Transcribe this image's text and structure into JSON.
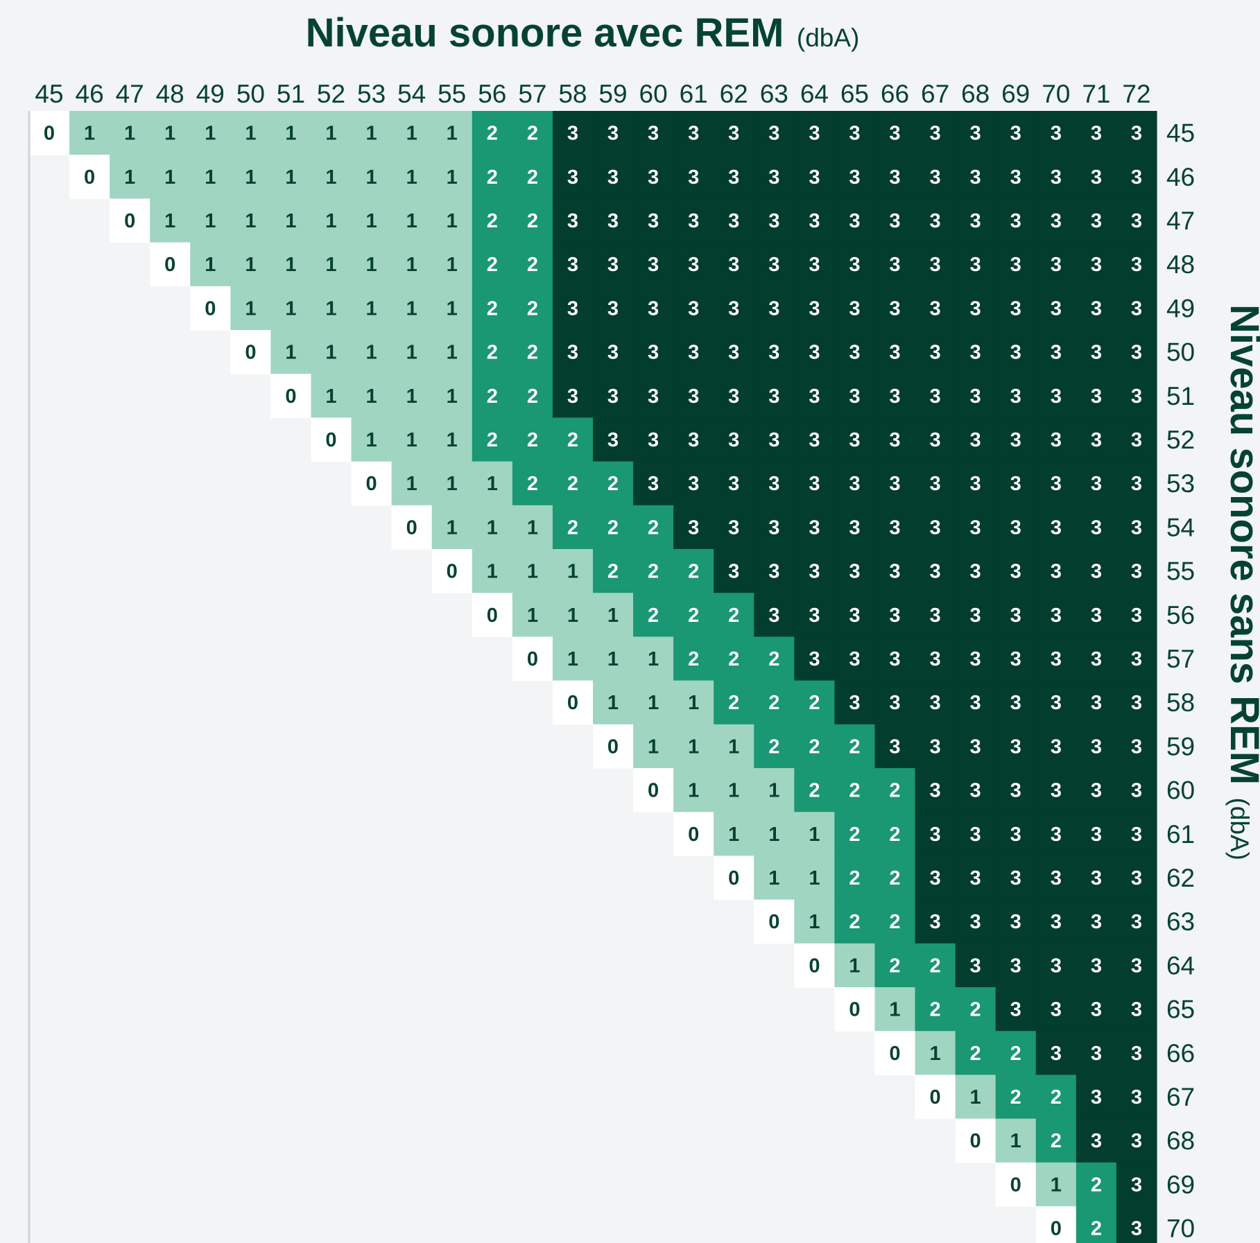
{
  "chart_data": {
    "type": "heatmap",
    "title": "Niveau sonore avec REM",
    "title_unit": "(dbA)",
    "ylabel": "Niveau sonore sans REM",
    "ylabel_unit": "(dbA)",
    "x_ticks": [
      45,
      46,
      47,
      48,
      49,
      50,
      51,
      52,
      53,
      54,
      55,
      56,
      57,
      58,
      59,
      60,
      61,
      62,
      63,
      64,
      65,
      66,
      67,
      68,
      69,
      70,
      71,
      72
    ],
    "y_ticks": [
      45,
      46,
      47,
      48,
      49,
      50,
      51,
      52,
      53,
      54,
      55,
      56,
      57,
      58,
      59,
      60,
      61,
      62,
      63,
      64,
      65,
      66,
      67,
      68,
      69,
      70
    ],
    "rows": [
      [
        0,
        1,
        1,
        1,
        1,
        1,
        1,
        1,
        1,
        1,
        1,
        2,
        2,
        3,
        3,
        3,
        3,
        3,
        3,
        3,
        3,
        3,
        3,
        3,
        3,
        3,
        3,
        3
      ],
      [
        null,
        0,
        1,
        1,
        1,
        1,
        1,
        1,
        1,
        1,
        1,
        2,
        2,
        3,
        3,
        3,
        3,
        3,
        3,
        3,
        3,
        3,
        3,
        3,
        3,
        3,
        3,
        3
      ],
      [
        null,
        null,
        0,
        1,
        1,
        1,
        1,
        1,
        1,
        1,
        1,
        2,
        2,
        3,
        3,
        3,
        3,
        3,
        3,
        3,
        3,
        3,
        3,
        3,
        3,
        3,
        3,
        3
      ],
      [
        null,
        null,
        null,
        0,
        1,
        1,
        1,
        1,
        1,
        1,
        1,
        2,
        2,
        3,
        3,
        3,
        3,
        3,
        3,
        3,
        3,
        3,
        3,
        3,
        3,
        3,
        3,
        3
      ],
      [
        null,
        null,
        null,
        null,
        0,
        1,
        1,
        1,
        1,
        1,
        1,
        2,
        2,
        3,
        3,
        3,
        3,
        3,
        3,
        3,
        3,
        3,
        3,
        3,
        3,
        3,
        3,
        3
      ],
      [
        null,
        null,
        null,
        null,
        null,
        0,
        1,
        1,
        1,
        1,
        1,
        2,
        2,
        3,
        3,
        3,
        3,
        3,
        3,
        3,
        3,
        3,
        3,
        3,
        3,
        3,
        3,
        3
      ],
      [
        null,
        null,
        null,
        null,
        null,
        null,
        0,
        1,
        1,
        1,
        1,
        2,
        2,
        3,
        3,
        3,
        3,
        3,
        3,
        3,
        3,
        3,
        3,
        3,
        3,
        3,
        3,
        3
      ],
      [
        null,
        null,
        null,
        null,
        null,
        null,
        null,
        0,
        1,
        1,
        1,
        2,
        2,
        2,
        3,
        3,
        3,
        3,
        3,
        3,
        3,
        3,
        3,
        3,
        3,
        3,
        3,
        3
      ],
      [
        null,
        null,
        null,
        null,
        null,
        null,
        null,
        null,
        0,
        1,
        1,
        1,
        2,
        2,
        2,
        3,
        3,
        3,
        3,
        3,
        3,
        3,
        3,
        3,
        3,
        3,
        3,
        3
      ],
      [
        null,
        null,
        null,
        null,
        null,
        null,
        null,
        null,
        null,
        0,
        1,
        1,
        1,
        2,
        2,
        2,
        3,
        3,
        3,
        3,
        3,
        3,
        3,
        3,
        3,
        3,
        3,
        3
      ],
      [
        null,
        null,
        null,
        null,
        null,
        null,
        null,
        null,
        null,
        null,
        0,
        1,
        1,
        1,
        2,
        2,
        2,
        3,
        3,
        3,
        3,
        3,
        3,
        3,
        3,
        3,
        3,
        3
      ],
      [
        null,
        null,
        null,
        null,
        null,
        null,
        null,
        null,
        null,
        null,
        null,
        0,
        1,
        1,
        1,
        2,
        2,
        2,
        3,
        3,
        3,
        3,
        3,
        3,
        3,
        3,
        3,
        3
      ],
      [
        null,
        null,
        null,
        null,
        null,
        null,
        null,
        null,
        null,
        null,
        null,
        null,
        0,
        1,
        1,
        1,
        2,
        2,
        2,
        3,
        3,
        3,
        3,
        3,
        3,
        3,
        3,
        3
      ],
      [
        null,
        null,
        null,
        null,
        null,
        null,
        null,
        null,
        null,
        null,
        null,
        null,
        null,
        0,
        1,
        1,
        1,
        2,
        2,
        2,
        3,
        3,
        3,
        3,
        3,
        3,
        3,
        3
      ],
      [
        null,
        null,
        null,
        null,
        null,
        null,
        null,
        null,
        null,
        null,
        null,
        null,
        null,
        null,
        0,
        1,
        1,
        1,
        2,
        2,
        2,
        3,
        3,
        3,
        3,
        3,
        3,
        3
      ],
      [
        null,
        null,
        null,
        null,
        null,
        null,
        null,
        null,
        null,
        null,
        null,
        null,
        null,
        null,
        null,
        0,
        1,
        1,
        1,
        2,
        2,
        2,
        3,
        3,
        3,
        3,
        3,
        3
      ],
      [
        null,
        null,
        null,
        null,
        null,
        null,
        null,
        null,
        null,
        null,
        null,
        null,
        null,
        null,
        null,
        null,
        0,
        1,
        1,
        1,
        2,
        2,
        3,
        3,
        3,
        3,
        3,
        3
      ],
      [
        null,
        null,
        null,
        null,
        null,
        null,
        null,
        null,
        null,
        null,
        null,
        null,
        null,
        null,
        null,
        null,
        null,
        0,
        1,
        1,
        2,
        2,
        3,
        3,
        3,
        3,
        3,
        3
      ],
      [
        null,
        null,
        null,
        null,
        null,
        null,
        null,
        null,
        null,
        null,
        null,
        null,
        null,
        null,
        null,
        null,
        null,
        null,
        0,
        1,
        2,
        2,
        3,
        3,
        3,
        3,
        3,
        3
      ],
      [
        null,
        null,
        null,
        null,
        null,
        null,
        null,
        null,
        null,
        null,
        null,
        null,
        null,
        null,
        null,
        null,
        null,
        null,
        null,
        0,
        1,
        2,
        2,
        3,
        3,
        3,
        3,
        3
      ],
      [
        null,
        null,
        null,
        null,
        null,
        null,
        null,
        null,
        null,
        null,
        null,
        null,
        null,
        null,
        null,
        null,
        null,
        null,
        null,
        null,
        0,
        1,
        2,
        2,
        3,
        3,
        3,
        3
      ],
      [
        null,
        null,
        null,
        null,
        null,
        null,
        null,
        null,
        null,
        null,
        null,
        null,
        null,
        null,
        null,
        null,
        null,
        null,
        null,
        null,
        null,
        0,
        1,
        2,
        2,
        3,
        3,
        3
      ],
      [
        null,
        null,
        null,
        null,
        null,
        null,
        null,
        null,
        null,
        null,
        null,
        null,
        null,
        null,
        null,
        null,
        null,
        null,
        null,
        null,
        null,
        null,
        0,
        1,
        2,
        2,
        3,
        3
      ],
      [
        null,
        null,
        null,
        null,
        null,
        null,
        null,
        null,
        null,
        null,
        null,
        null,
        null,
        null,
        null,
        null,
        null,
        null,
        null,
        null,
        null,
        null,
        null,
        0,
        1,
        2,
        3,
        3
      ],
      [
        null,
        null,
        null,
        null,
        null,
        null,
        null,
        null,
        null,
        null,
        null,
        null,
        null,
        null,
        null,
        null,
        null,
        null,
        null,
        null,
        null,
        null,
        null,
        null,
        0,
        1,
        2,
        3
      ],
      [
        null,
        null,
        null,
        null,
        null,
        null,
        null,
        null,
        null,
        null,
        null,
        null,
        null,
        null,
        null,
        null,
        null,
        null,
        null,
        null,
        null,
        null,
        null,
        null,
        null,
        0,
        2,
        3
      ]
    ],
    "colors": {
      "0": "#ffffff",
      "1": "#9fd5c1",
      "2": "#1a9773",
      "3": "#033d2d",
      "blank": "#ffffff",
      "background": "#f2f4f5",
      "text_dark": "#064230",
      "text_light": "#ffffff",
      "axis_line": "#cfd4d6"
    },
    "x_axis_position": "top",
    "y_axis_position": "right",
    "grid": false,
    "legend": "none"
  }
}
